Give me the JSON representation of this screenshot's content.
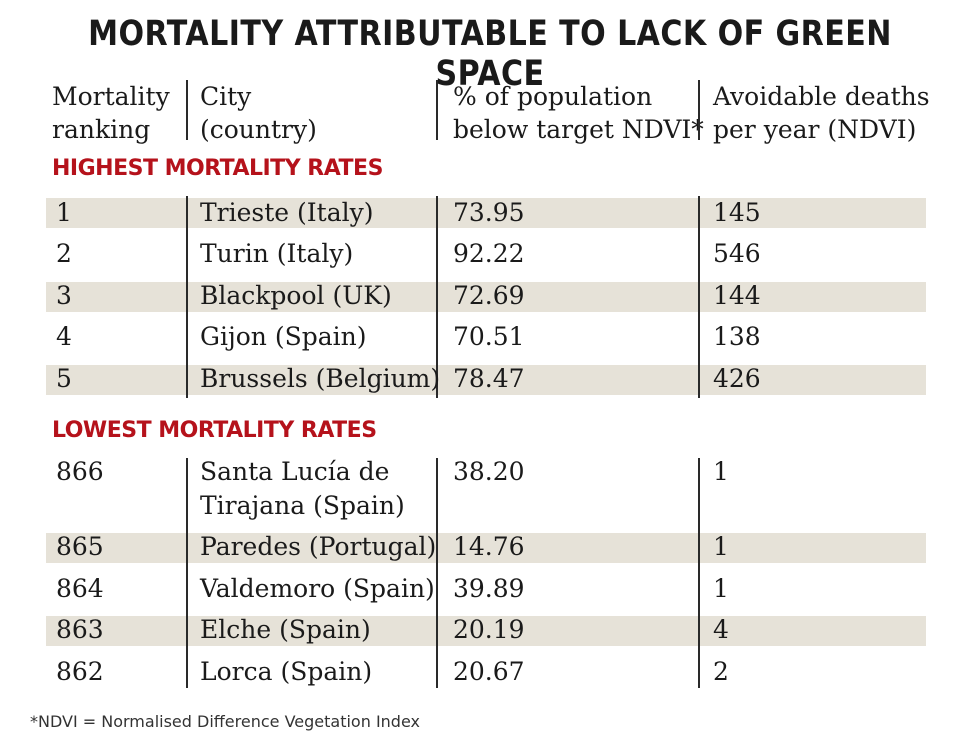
{
  "title": "MORTALITY ATTRIBUTABLE TO LACK OF GREEN SPACE",
  "columns": {
    "rank_line1": "Mortality",
    "rank_line2": "ranking",
    "city_line1": "City",
    "city_line2": "(country)",
    "pct_line1": "% of population",
    "pct_line2": "below target NDVI*",
    "deaths_line1": "Avoidable deaths",
    "deaths_line2": "per year (NDVI)"
  },
  "highest": {
    "label": "HIGHEST MORTALITY RATES",
    "rows": [
      {
        "rank": "1",
        "city": "Trieste (Italy)",
        "pct": "73.95",
        "deaths": "145"
      },
      {
        "rank": "2",
        "city": "Turin (Italy)",
        "pct": "92.22",
        "deaths": "546"
      },
      {
        "rank": "3",
        "city": "Blackpool (UK)",
        "pct": "72.69",
        "deaths": "144"
      },
      {
        "rank": "4",
        "city": "Gijon (Spain)",
        "pct": "70.51",
        "deaths": "138"
      },
      {
        "rank": "5",
        "city": "Brussels (Belgium)",
        "pct": "78.47",
        "deaths": "426"
      }
    ]
  },
  "lowest": {
    "label": "LOWEST MORTALITY RATES",
    "rows": [
      {
        "rank": "866",
        "city_line1": "Santa Lucía de",
        "city_line2": "Tirajana (Spain)",
        "pct": "38.20",
        "deaths": "1"
      },
      {
        "rank": "865",
        "city": "Paredes (Portugal)",
        "pct": "14.76",
        "deaths": "1"
      },
      {
        "rank": "864",
        "city": "Valdemoro (Spain)",
        "pct": "39.89",
        "deaths": "1"
      },
      {
        "rank": "863",
        "city": "Elche (Spain)",
        "pct": "20.19",
        "deaths": "4"
      },
      {
        "rank": "862",
        "city": "Lorca (Spain)",
        "pct": "20.67",
        "deaths": "2"
      }
    ]
  },
  "footnote": "*NDVI = Normalised Difference Vegetation Index",
  "colors": {
    "accent": "#b5121b",
    "band": "#e6e2d8"
  }
}
